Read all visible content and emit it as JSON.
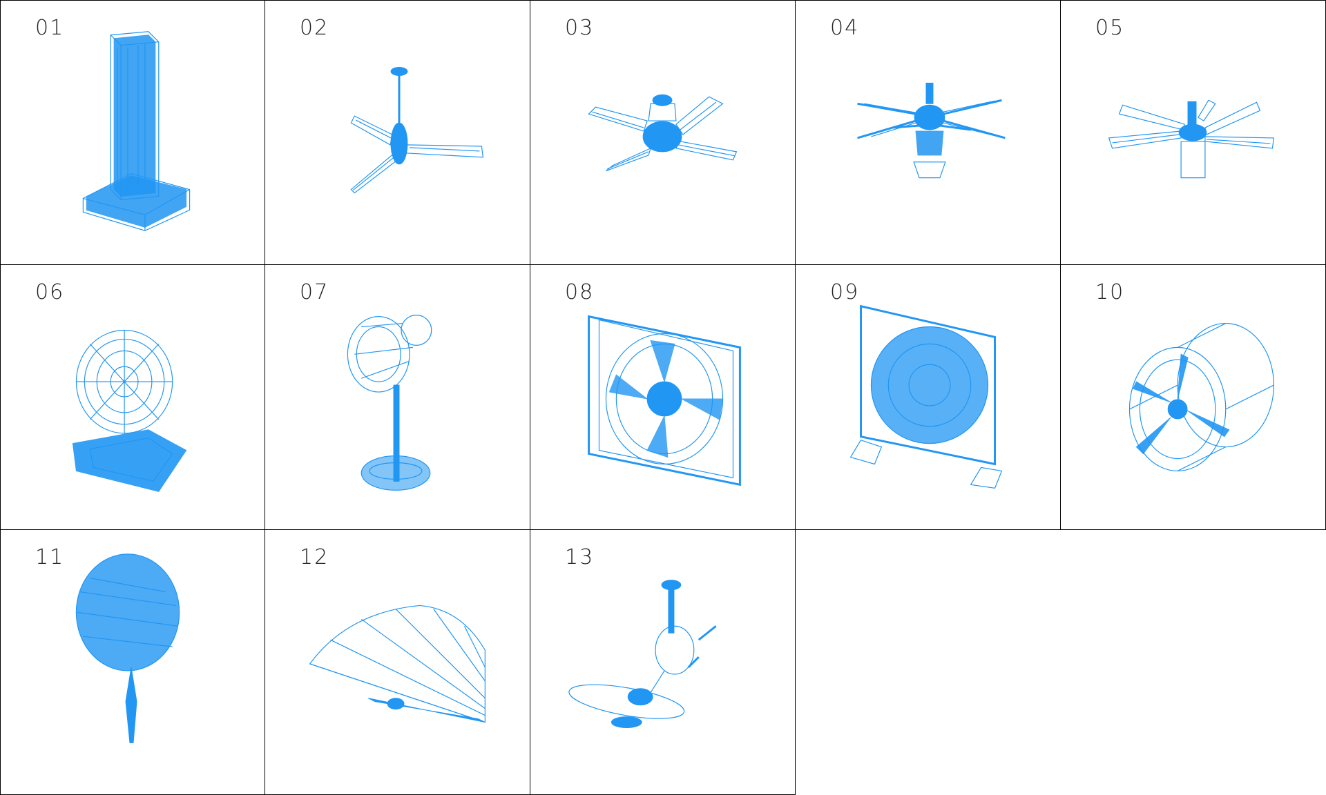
{
  "accent_color": "#2196f3",
  "cells": [
    {
      "label": "01",
      "model": "tower-fan"
    },
    {
      "label": "02",
      "model": "three-blade-ceiling-fan"
    },
    {
      "label": "03",
      "model": "four-blade-ceiling-fan-with-light"
    },
    {
      "label": "04",
      "model": "six-blade-ceiling-fan-with-lamp"
    },
    {
      "label": "05",
      "model": "five-blade-ceiling-fan"
    },
    {
      "label": "06",
      "model": "tilted-desk-fan"
    },
    {
      "label": "07",
      "model": "pedestal-fan"
    },
    {
      "label": "08",
      "model": "square-box-fan"
    },
    {
      "label": "09",
      "model": "box-fan-with-feet"
    },
    {
      "label": "10",
      "model": "drum-fan"
    },
    {
      "label": "11",
      "model": "hand-paddle-fan"
    },
    {
      "label": "12",
      "model": "folding-hand-fan"
    },
    {
      "label": "13",
      "model": "oscillating-ceiling-fan"
    }
  ]
}
